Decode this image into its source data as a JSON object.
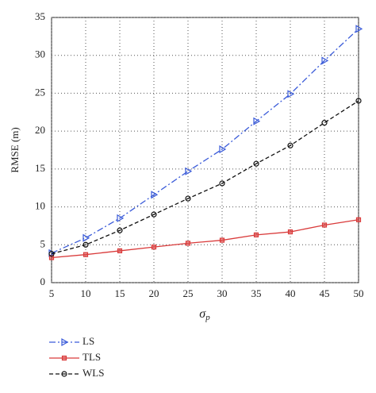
{
  "chart_data": {
    "type": "line",
    "x_label": "σ",
    "x_label_sub": "p",
    "y_label": "RMSE (m)",
    "x": [
      5,
      10,
      15,
      20,
      25,
      30,
      35,
      40,
      45,
      50
    ],
    "xlim": [
      5,
      50
    ],
    "xticks": [
      5,
      10,
      15,
      20,
      25,
      30,
      35,
      40,
      45,
      50
    ],
    "ylim": [
      0,
      35
    ],
    "yticks": [
      0,
      5,
      10,
      15,
      20,
      25,
      30,
      35
    ],
    "grid": true,
    "legend": "bottom-left",
    "series": [
      {
        "name": "LS",
        "color": "#3a5bd9",
        "dash": "8 3 2 3",
        "marker": "triangle-right",
        "values": [
          3.9,
          5.9,
          8.5,
          11.6,
          14.7,
          17.6,
          21.3,
          24.9,
          29.3,
          33.5
        ]
      },
      {
        "name": "TLS",
        "color": "#d93a3a",
        "dash": "none",
        "marker": "square",
        "values": [
          3.3,
          3.7,
          4.2,
          4.7,
          5.2,
          5.6,
          6.3,
          6.7,
          7.6,
          8.3
        ]
      },
      {
        "name": "WLS",
        "color": "#111111",
        "dash": "5 3",
        "marker": "circle",
        "values": [
          3.8,
          5.0,
          6.9,
          9.0,
          11.1,
          13.1,
          15.7,
          18.1,
          21.1,
          24.0
        ]
      }
    ]
  }
}
